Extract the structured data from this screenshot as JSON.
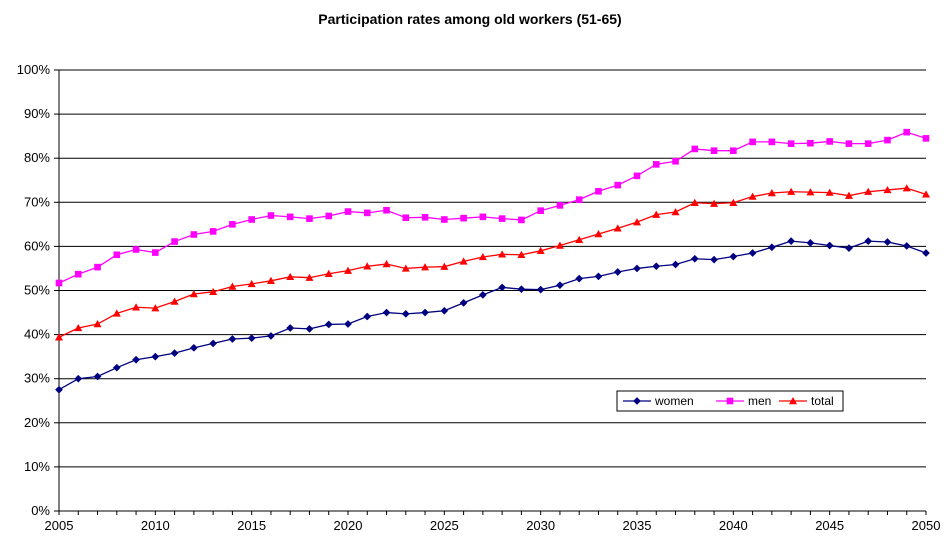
{
  "chart_data": {
    "type": "line",
    "title": "Participation rates among old workers (51-65)",
    "xlabel": "",
    "ylabel": "",
    "x": [
      2005,
      2006,
      2007,
      2008,
      2009,
      2010,
      2011,
      2012,
      2013,
      2014,
      2015,
      2016,
      2017,
      2018,
      2019,
      2020,
      2021,
      2022,
      2023,
      2024,
      2025,
      2026,
      2027,
      2028,
      2029,
      2030,
      2031,
      2032,
      2033,
      2034,
      2035,
      2036,
      2037,
      2038,
      2039,
      2040,
      2041,
      2042,
      2043,
      2044,
      2045,
      2046,
      2047,
      2048,
      2049,
      2050
    ],
    "xlim": [
      2005,
      2050
    ],
    "ylim": [
      0,
      100
    ],
    "x_ticks": [
      2005,
      2010,
      2015,
      2020,
      2025,
      2030,
      2035,
      2040,
      2045,
      2050
    ],
    "y_ticks": [
      0,
      10,
      20,
      30,
      40,
      50,
      60,
      70,
      80,
      90,
      100
    ],
    "y_tick_labels": [
      "0%",
      "10%",
      "20%",
      "30%",
      "40%",
      "50%",
      "60%",
      "70%",
      "80%",
      "90%",
      "100%"
    ],
    "x_tick_labels": [
      "2005",
      "2010",
      "2015",
      "2020",
      "2025",
      "2030",
      "2035",
      "2040",
      "2045",
      "2050"
    ],
    "grid": "horizontal",
    "legend_position": "bottom-right",
    "series": [
      {
        "name": "women",
        "color": "#000080",
        "marker": "diamond",
        "values": [
          27.5,
          30,
          30.5,
          32.5,
          34.3,
          35,
          35.8,
          37,
          38,
          39,
          39.2,
          39.7,
          41.5,
          41.3,
          42.3,
          42.4,
          44.1,
          45,
          44.7,
          45,
          45.4,
          47.2,
          49,
          50.7,
          50.3,
          50.2,
          51.2,
          52.7,
          53.2,
          54.2,
          55,
          55.5,
          55.9,
          57.2,
          57,
          57.7,
          58.5,
          59.8,
          61.2,
          60.8,
          60.2,
          59.6,
          61.2,
          61,
          60.1,
          58.5
        ]
      },
      {
        "name": "men",
        "color": "#FF00FF",
        "marker": "square",
        "values": [
          51.7,
          53.7,
          55.3,
          58.1,
          59.3,
          58.6,
          61.1,
          62.7,
          63.4,
          65,
          66.1,
          67,
          66.7,
          66.3,
          66.9,
          67.9,
          67.6,
          68.2,
          66.5,
          66.6,
          66.1,
          66.4,
          66.7,
          66.3,
          66,
          68.1,
          69.3,
          70.6,
          72.5,
          73.9,
          76,
          78.6,
          79.3,
          82.1,
          81.7,
          81.7,
          83.7,
          83.7,
          83.3,
          83.4,
          83.8,
          83.3,
          83.3,
          84.1,
          85.9,
          84.5
        ]
      },
      {
        "name": "total",
        "color": "#FF0000",
        "marker": "triangle",
        "values": [
          39.4,
          41.5,
          42.4,
          44.8,
          46.2,
          46,
          47.5,
          49.2,
          49.7,
          50.9,
          51.5,
          52.2,
          53.1,
          52.9,
          53.8,
          54.5,
          55.5,
          56,
          55,
          55.3,
          55.4,
          56.6,
          57.6,
          58.2,
          58.1,
          59,
          60.2,
          61.5,
          62.8,
          64.1,
          65.5,
          67.2,
          67.8,
          69.9,
          69.7,
          69.9,
          71.3,
          72.1,
          72.4,
          72.3,
          72.2,
          71.5,
          72.4,
          72.8,
          73.2,
          71.8
        ]
      }
    ]
  }
}
